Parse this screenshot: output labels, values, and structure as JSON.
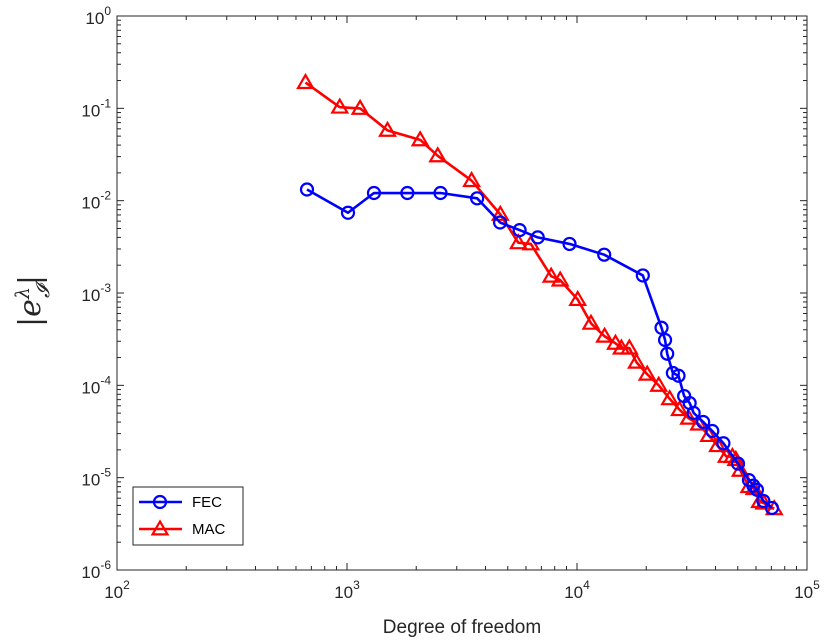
{
  "chart_data": {
    "type": "line",
    "title": "",
    "xlabel": "Degree of freedom",
    "ylabel": "|e_I^λ|",
    "ylabel_parts": {
      "open": "|",
      "base": "e",
      "sup": "λ",
      "sub": "𝓘",
      "close": "|"
    },
    "xscale": "log",
    "yscale": "log",
    "xlim": [
      100,
      100000
    ],
    "ylim": [
      1e-06,
      1
    ],
    "xticks": [
      {
        "value": 100,
        "base": "10",
        "exp": "2"
      },
      {
        "value": 1000,
        "base": "10",
        "exp": "3"
      },
      {
        "value": 10000,
        "base": "10",
        "exp": "4"
      },
      {
        "value": 100000,
        "base": "10",
        "exp": "5"
      }
    ],
    "yticks": [
      {
        "value": 1e-06,
        "base": "10",
        "exp": "-6"
      },
      {
        "value": 1e-05,
        "base": "10",
        "exp": "-5"
      },
      {
        "value": 0.0001,
        "base": "10",
        "exp": "-4"
      },
      {
        "value": 0.001,
        "base": "10",
        "exp": "-3"
      },
      {
        "value": 0.01,
        "base": "10",
        "exp": "-2"
      },
      {
        "value": 0.1,
        "base": "10",
        "exp": "-1"
      },
      {
        "value": 1,
        "base": "10",
        "exp": "0"
      }
    ],
    "grid": false,
    "legend_position": "bottom-left",
    "series": [
      {
        "name": "FEC",
        "color": "#0000ff",
        "marker": "circle",
        "x": [
          670,
          1010,
          1310,
          1830,
          2550,
          3680,
          4630,
          5630,
          6750,
          9280,
          13130,
          19330,
          23310,
          24150,
          24670,
          26110,
          27630,
          29230,
          30890,
          32150,
          35370,
          38740,
          43320,
          50120,
          55930,
          58420,
          60560,
          64600,
          70400
        ],
        "y": [
          0.0132,
          0.0074,
          0.0121,
          0.0121,
          0.0121,
          0.0106,
          0.0058,
          0.0048,
          0.004,
          0.0034,
          0.0026,
          0.00155,
          0.00042,
          0.00031,
          0.00022,
          0.000136,
          0.000127,
          7.65e-05,
          6.43e-05,
          5.03e-05,
          4.01e-05,
          3.2e-05,
          2.36e-05,
          1.42e-05,
          9.4e-06,
          8.2e-06,
          7.4e-06,
          5.6e-06,
          4.7e-06
        ]
      },
      {
        "name": "MAC",
        "color": "#ff0000",
        "marker": "triangle",
        "x": [
          660,
          930,
          1140,
          1500,
          2080,
          2480,
          3480,
          4640,
          5560,
          6300,
          7720,
          8450,
          10070,
          11500,
          13180,
          14700,
          15590,
          16890,
          18130,
          20190,
          22660,
          25290,
          27900,
          30590,
          33800,
          37380,
          40830,
          44570,
          47370,
          49040,
          51280,
          55930,
          58870,
          62210,
          64900,
          72030
        ],
        "y": [
          0.19,
          0.103,
          0.0998,
          0.0577,
          0.0456,
          0.0306,
          0.0165,
          0.0071,
          0.0035,
          0.0034,
          0.00152,
          0.00138,
          0.00085,
          0.00047,
          0.00034,
          0.000285,
          0.000253,
          0.000253,
          0.000178,
          0.000132,
          0.0001,
          7.15e-05,
          5.45e-05,
          4.4e-05,
          3.8e-05,
          2.86e-05,
          2.22e-05,
          1.7e-05,
          1.69e-05,
          1.57e-05,
          1.2e-05,
          8e-06,
          7.6e-06,
          5.5e-06,
          5.3e-06,
          4.6e-06
        ]
      }
    ]
  }
}
